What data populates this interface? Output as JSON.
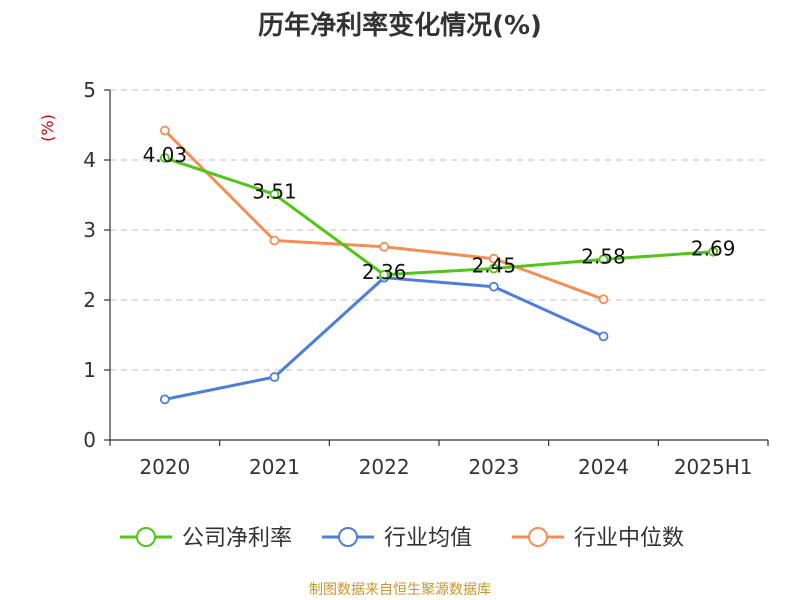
{
  "colors": {
    "company": "#52c41a",
    "industry_avg": "#4e7fd6",
    "industry_median": "#f28f57",
    "ylabel": "#cc0000",
    "source": "#c8962d"
  },
  "chart_data": {
    "type": "line",
    "title": "历年净利率变化情况(%)",
    "ylabel": "(%)",
    "ylim": [
      0,
      5
    ],
    "yticks": [
      "0",
      "1",
      "2",
      "3",
      "4",
      "5"
    ],
    "grid": true,
    "legend_position": "bottom",
    "categories": [
      "2020",
      "2021",
      "2022",
      "2023",
      "2024",
      "2025H1"
    ],
    "series": [
      {
        "name": "公司净利率",
        "values": [
          4.03,
          3.51,
          2.36,
          2.45,
          2.58,
          2.69
        ],
        "labels": [
          "4.03",
          "3.51",
          "2.36",
          "2.45",
          "2.58",
          "2.69"
        ]
      },
      {
        "name": "行业均值",
        "values": [
          0.58,
          0.9,
          2.32,
          2.19,
          1.48,
          null
        ]
      },
      {
        "name": "行业中位数",
        "values": [
          4.42,
          2.85,
          2.76,
          2.59,
          2.01,
          null
        ]
      }
    ]
  },
  "source": "制图数据来自恒生聚源数据库"
}
